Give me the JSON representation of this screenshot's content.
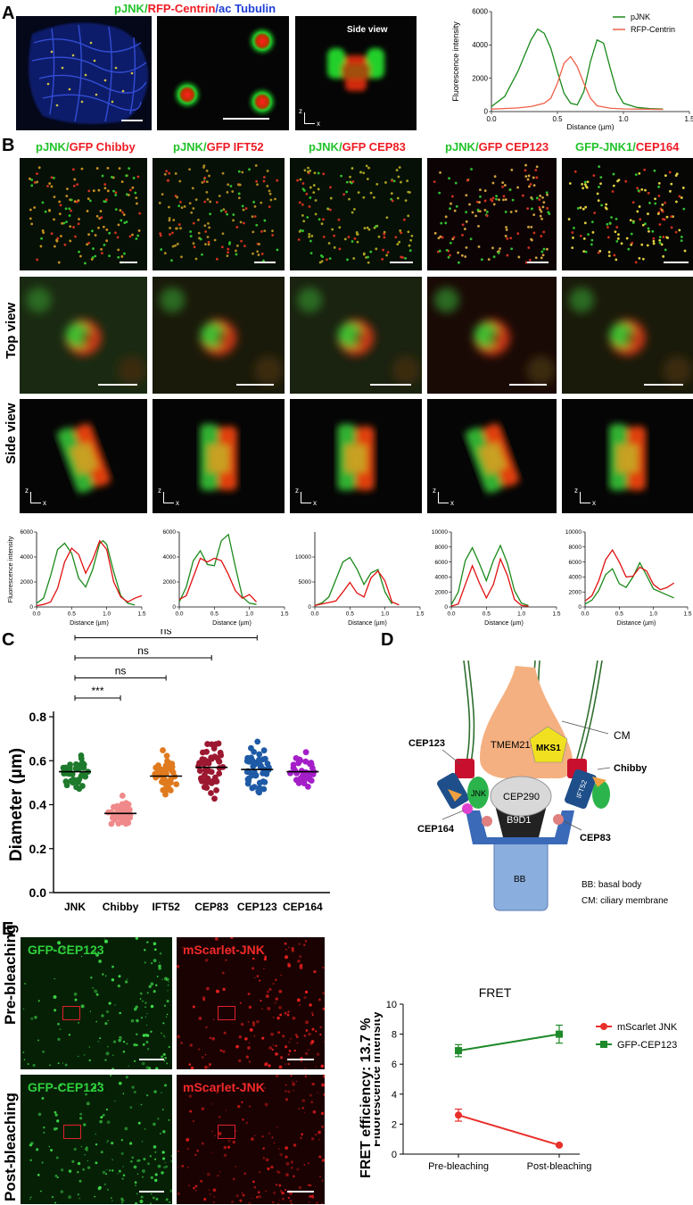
{
  "panels": {
    "A": "A",
    "B": "B",
    "C": "C",
    "D": "D",
    "E": "E"
  },
  "panelA": {
    "title_green": "pJNK",
    "title_slash1": "/",
    "title_red": "RFP-Centrin",
    "title_slash2": "/",
    "title_blue": "ac Tubulin",
    "side_view": "Side view",
    "z": "z",
    "x": "x"
  },
  "panelB": {
    "cols": [
      {
        "g": "pJNK",
        "s": "/",
        "r": "GFP Chibby",
        "gcolor": "#22c32a",
        "rcolor": "#ee1c24"
      },
      {
        "g": "pJNK",
        "s": "/",
        "r": "GFP IFT52",
        "gcolor": "#22c32a",
        "rcolor": "#ee1c24"
      },
      {
        "g": "pJNK",
        "s": "/",
        "r": "GFP CEP83",
        "gcolor": "#22c32a",
        "rcolor": "#ee1c24"
      },
      {
        "g": "pJNK",
        "s": "/",
        "r": "GFP CEP123",
        "gcolor": "#22c32a",
        "rcolor": "#ee1c24"
      },
      {
        "g": "GFP-JNK1",
        "s": "/",
        "r": "CEP164",
        "gcolor": "#22c32a",
        "rcolor": "#ee1c24"
      }
    ],
    "row_top": "Top view",
    "row_side": "Side view",
    "z": "z",
    "x": "x"
  },
  "chart_data": [
    {
      "id": "A-profile",
      "type": "line",
      "xlabel": "Distance (µm)",
      "ylabel": "Fluorescence intensity",
      "xlim": [
        0,
        1.5
      ],
      "ylim": [
        0,
        6000
      ],
      "xticks": [
        "0.0",
        "0.5",
        "1.0",
        "1.5"
      ],
      "yticks": [
        "0",
        "2000",
        "4000",
        "6000"
      ],
      "legend": "top-right",
      "series": [
        {
          "name": "pJNK",
          "color": "#1a8a1a",
          "x": [
            0,
            0.1,
            0.2,
            0.3,
            0.35,
            0.4,
            0.45,
            0.5,
            0.55,
            0.6,
            0.65,
            0.7,
            0.75,
            0.8,
            0.85,
            0.9,
            0.95,
            1.0,
            1.1,
            1.2,
            1.3
          ],
          "y": [
            300,
            900,
            2400,
            4300,
            4950,
            4700,
            3800,
            2400,
            1100,
            500,
            400,
            1200,
            3000,
            4300,
            4100,
            2600,
            1200,
            500,
            250,
            180,
            150
          ]
        },
        {
          "name": "RFP-Centrin",
          "color": "#f0604a",
          "x": [
            0,
            0.1,
            0.2,
            0.3,
            0.4,
            0.45,
            0.5,
            0.55,
            0.6,
            0.65,
            0.7,
            0.75,
            0.8,
            0.9,
            1.0,
            1.1,
            1.2,
            1.3
          ],
          "y": [
            150,
            180,
            220,
            300,
            500,
            800,
            1700,
            2900,
            3300,
            2700,
            1700,
            800,
            350,
            200,
            160,
            150,
            140,
            130
          ]
        }
      ]
    },
    {
      "id": "B-chibby",
      "type": "line",
      "xlabel": "Distance (µm)",
      "ylabel": "Fluorescence intensity",
      "xlim": [
        0,
        1.5
      ],
      "ylim": [
        0,
        6000
      ],
      "xticks": [
        "0.0",
        "0.5",
        "1.0",
        "1.5"
      ],
      "yticks": [
        "0",
        "2000",
        "4000",
        "6000"
      ],
      "series": [
        {
          "name": "",
          "color": "#1a8a1a",
          "x": [
            0,
            0.1,
            0.2,
            0.3,
            0.4,
            0.5,
            0.6,
            0.7,
            0.8,
            0.9,
            0.95,
            1.0,
            1.1,
            1.2,
            1.3,
            1.4
          ],
          "y": [
            300,
            700,
            2500,
            4600,
            5100,
            4300,
            2300,
            1600,
            3000,
            5100,
            5300,
            5000,
            2800,
            900,
            300,
            150
          ]
        },
        {
          "name": "",
          "color": "#e01010",
          "x": [
            0,
            0.1,
            0.2,
            0.3,
            0.4,
            0.5,
            0.6,
            0.7,
            0.8,
            0.9,
            1.0,
            1.1,
            1.2,
            1.3,
            1.4,
            1.5
          ],
          "y": [
            100,
            200,
            400,
            1500,
            3600,
            4700,
            4200,
            2700,
            3800,
            5300,
            4600,
            2000,
            800,
            400,
            700,
            900
          ]
        }
      ]
    },
    {
      "id": "B-ift52",
      "type": "line",
      "xlabel": "Distance (µm)",
      "ylabel": "",
      "xlim": [
        0,
        1.5
      ],
      "ylim": [
        0,
        6000
      ],
      "xticks": [
        "0.0",
        "0.5",
        "1.0",
        "1.5"
      ],
      "yticks": [
        "0",
        "2000",
        "4000",
        "6000"
      ],
      "series": [
        {
          "name": "",
          "color": "#1a8a1a",
          "x": [
            0,
            0.1,
            0.2,
            0.3,
            0.4,
            0.5,
            0.6,
            0.7,
            0.8,
            0.9,
            1.0,
            1.1
          ],
          "y": [
            400,
            1600,
            3700,
            4500,
            3400,
            3300,
            5300,
            5800,
            3200,
            800,
            300,
            200
          ]
        },
        {
          "name": "",
          "color": "#e01010",
          "x": [
            0,
            0.1,
            0.2,
            0.3,
            0.4,
            0.5,
            0.6,
            0.7,
            0.8,
            0.9,
            1.0,
            1.1
          ],
          "y": [
            600,
            900,
            2400,
            3900,
            3600,
            3900,
            3700,
            2600,
            1300,
            700,
            1000,
            400
          ]
        }
      ]
    },
    {
      "id": "B-cep83",
      "type": "line",
      "xlabel": "Distance (µm)",
      "ylabel": "",
      "xlim": [
        0,
        1.5
      ],
      "ylim": [
        0,
        15000
      ],
      "xticks": [
        "0.0",
        "0.5",
        "1.0",
        "1.5"
      ],
      "yticks": [
        "0",
        "5000",
        "10000"
      ],
      "series": [
        {
          "name": "",
          "color": "#1a8a1a",
          "x": [
            0,
            0.1,
            0.2,
            0.3,
            0.4,
            0.5,
            0.6,
            0.7,
            0.8,
            0.9,
            1.0,
            1.1
          ],
          "y": [
            300,
            800,
            2000,
            5500,
            9000,
            9900,
            7600,
            4500,
            6800,
            7500,
            3000,
            600
          ]
        },
        {
          "name": "",
          "color": "#e01010",
          "x": [
            0,
            0.1,
            0.2,
            0.3,
            0.4,
            0.5,
            0.6,
            0.7,
            0.8,
            0.9,
            1.0,
            1.1,
            1.2
          ],
          "y": [
            300,
            600,
            900,
            1200,
            3000,
            4900,
            2800,
            2000,
            5800,
            7200,
            5200,
            1000,
            400
          ]
        }
      ]
    },
    {
      "id": "B-cep123",
      "type": "line",
      "xlabel": "Distance (µm)",
      "ylabel": "",
      "xlim": [
        0,
        1.5
      ],
      "ylim": [
        0,
        10000
      ],
      "xticks": [
        "0.0",
        "0.5",
        "1.0",
        "1.5"
      ],
      "yticks": [
        "0",
        "2000",
        "4000",
        "6000",
        "8000",
        "10000"
      ],
      "series": [
        {
          "name": "",
          "color": "#1a8a1a",
          "x": [
            0,
            0.1,
            0.2,
            0.3,
            0.4,
            0.5,
            0.6,
            0.7,
            0.8,
            0.9,
            1.0,
            1.1
          ],
          "y": [
            300,
            2000,
            6200,
            7900,
            5800,
            3500,
            6200,
            8200,
            5800,
            2200,
            500,
            200
          ]
        },
        {
          "name": "",
          "color": "#e01010",
          "x": [
            0,
            0.1,
            0.2,
            0.3,
            0.4,
            0.5,
            0.6,
            0.7,
            0.8,
            0.9,
            1.0,
            1.1
          ],
          "y": [
            100,
            400,
            3000,
            5500,
            3200,
            1200,
            3000,
            6400,
            4200,
            1000,
            200,
            100
          ]
        }
      ]
    },
    {
      "id": "B-cep164",
      "type": "line",
      "xlabel": "Distance (µm)",
      "ylabel": "",
      "xlim": [
        0,
        1.5
      ],
      "ylim": [
        0,
        10000
      ],
      "xticks": [
        "0.0",
        "0.5",
        "1.0",
        "1.5"
      ],
      "yticks": [
        "0",
        "2000",
        "4000",
        "6000",
        "8000",
        "10000"
      ],
      "series": [
        {
          "name": "",
          "color": "#1a8a1a",
          "x": [
            0,
            0.1,
            0.2,
            0.3,
            0.4,
            0.5,
            0.6,
            0.7,
            0.8,
            0.9,
            1.0,
            1.1,
            1.2,
            1.3
          ],
          "y": [
            400,
            900,
            2200,
            4300,
            5100,
            3100,
            2600,
            4000,
            5900,
            4200,
            2400,
            2000,
            1600,
            1200
          ]
        },
        {
          "name": "",
          "color": "#e01010",
          "x": [
            0,
            0.1,
            0.2,
            0.3,
            0.4,
            0.5,
            0.6,
            0.7,
            0.8,
            0.9,
            1.0,
            1.1,
            1.2,
            1.3
          ],
          "y": [
            800,
            1500,
            3500,
            6300,
            7600,
            6000,
            4000,
            4100,
            5300,
            4800,
            3000,
            2300,
            2600,
            3200
          ]
        }
      ]
    },
    {
      "id": "C-diameter",
      "type": "scatter",
      "ylabel": "Diameter (µm)",
      "ylim": [
        0.0,
        0.8
      ],
      "yticks": [
        "0.0",
        "0.2",
        "0.4",
        "0.6",
        "0.8"
      ],
      "categories": [
        "JNK",
        "Chibby",
        "IFT52",
        "CEP83",
        "CEP123",
        "CEP164"
      ],
      "colors": [
        "#1e7a2c",
        "#f08a8a",
        "#e07a1e",
        "#9c1830",
        "#1f5aa6",
        "#a41ec8"
      ],
      "means": [
        0.55,
        0.36,
        0.53,
        0.57,
        0.56,
        0.55
      ],
      "spreads": [
        0.05,
        0.05,
        0.06,
        0.08,
        0.07,
        0.05
      ],
      "counts": [
        40,
        45,
        50,
        50,
        48,
        35
      ],
      "comparisons": [
        {
          "from": "JNK",
          "to": "Chibby",
          "label": "***"
        },
        {
          "from": "JNK",
          "to": "IFT52",
          "label": "ns"
        },
        {
          "from": "JNK",
          "to": "CEP83",
          "label": "ns"
        },
        {
          "from": "JNK",
          "to": "CEP123",
          "label": "ns"
        },
        {
          "from": "JNK",
          "to": "CEP164",
          "label": "ns"
        }
      ]
    },
    {
      "id": "E-fret",
      "type": "line",
      "title": "FRET",
      "ylabel": "Fluorescence intensity",
      "categories": [
        "Pre-bleaching",
        "Post-bleaching"
      ],
      "ylim": [
        0,
        10
      ],
      "yticks": [
        "0",
        "2",
        "4",
        "6",
        "8",
        "10"
      ],
      "legend": "top-right",
      "series": [
        {
          "name": "mScarlet JNK",
          "color": "#e8302a",
          "marker": "circle",
          "values": [
            2.6,
            0.6
          ],
          "err": [
            0.4,
            0.05
          ]
        },
        {
          "name": "GFP-CEP123",
          "color": "#1f8a2a",
          "marker": "square",
          "values": [
            6.9,
            8.0
          ],
          "err": [
            0.4,
            0.6
          ]
        }
      ]
    }
  ],
  "panelD": {
    "labels": {
      "cm": "CM",
      "tmem216": "TMEM216",
      "mks1": "MKS1",
      "chibby": "Chibby",
      "cep123": "CEP123",
      "jnk": "JNK",
      "cep290": "CEP290",
      "ift52": "IFT52",
      "cep164": "CEP164",
      "b9d1": "B9D1",
      "cep83": "CEP83",
      "bb": "BB"
    },
    "legend": [
      "BB: basal body",
      "CM: ciliary membrane"
    ]
  },
  "panelE": {
    "gfp": "GFP-CEP123",
    "mscarlet": "mScarlet-JNK",
    "pre": "Pre-bleaching",
    "post": "Post-bleaching",
    "fret_efficiency": "FRET efficiency: 13.7 %"
  }
}
